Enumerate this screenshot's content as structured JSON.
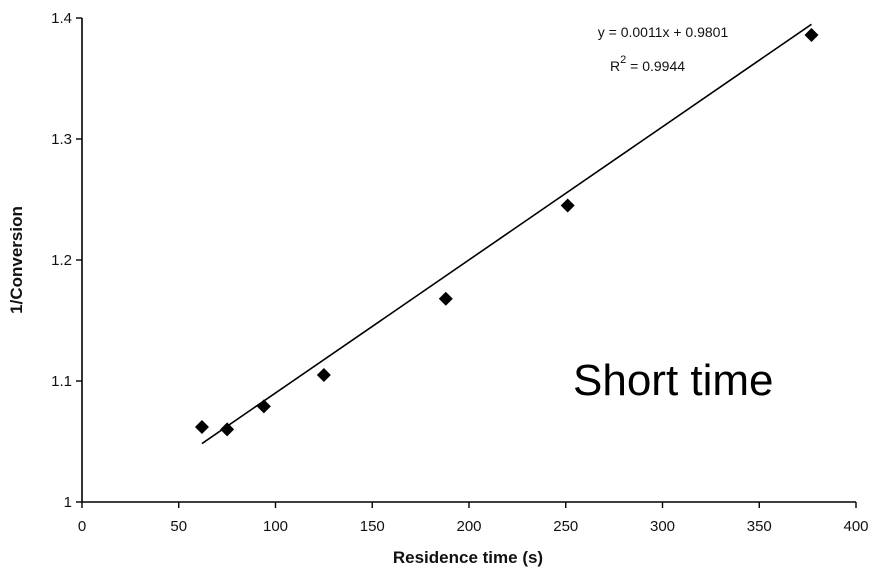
{
  "chart_data": {
    "type": "scatter",
    "title": "",
    "xlabel": "Residence time (s)",
    "ylabel": "1/Conversion",
    "xlim": [
      0,
      400
    ],
    "ylim": [
      1,
      1.4
    ],
    "x_ticks": [
      "0",
      "50",
      "100",
      "150",
      "200",
      "250",
      "300",
      "350",
      "400"
    ],
    "y_ticks": [
      "1",
      "1.1",
      "1.2",
      "1.3",
      "1.4"
    ],
    "grid": false,
    "points": [
      {
        "x": 62,
        "y": 1.062
      },
      {
        "x": 75,
        "y": 1.06
      },
      {
        "x": 94,
        "y": 1.079
      },
      {
        "x": 125,
        "y": 1.105
      },
      {
        "x": 188,
        "y": 1.168
      },
      {
        "x": 251,
        "y": 1.245
      },
      {
        "x": 377,
        "y": 1.386
      }
    ],
    "trendline": {
      "slope": 0.0011,
      "intercept": 0.9801,
      "x_start": 62,
      "x_end": 377
    },
    "equation": "y = 0.0011x + 0.9801",
    "r_squared_label": "R",
    "r_squared_exponent": "2",
    "r_squared_value": " = 0.9944",
    "annotation": "Short time",
    "marker": "diamond",
    "colors": {
      "marker": "#000000",
      "line": "#000000",
      "axis": "#000000"
    }
  }
}
